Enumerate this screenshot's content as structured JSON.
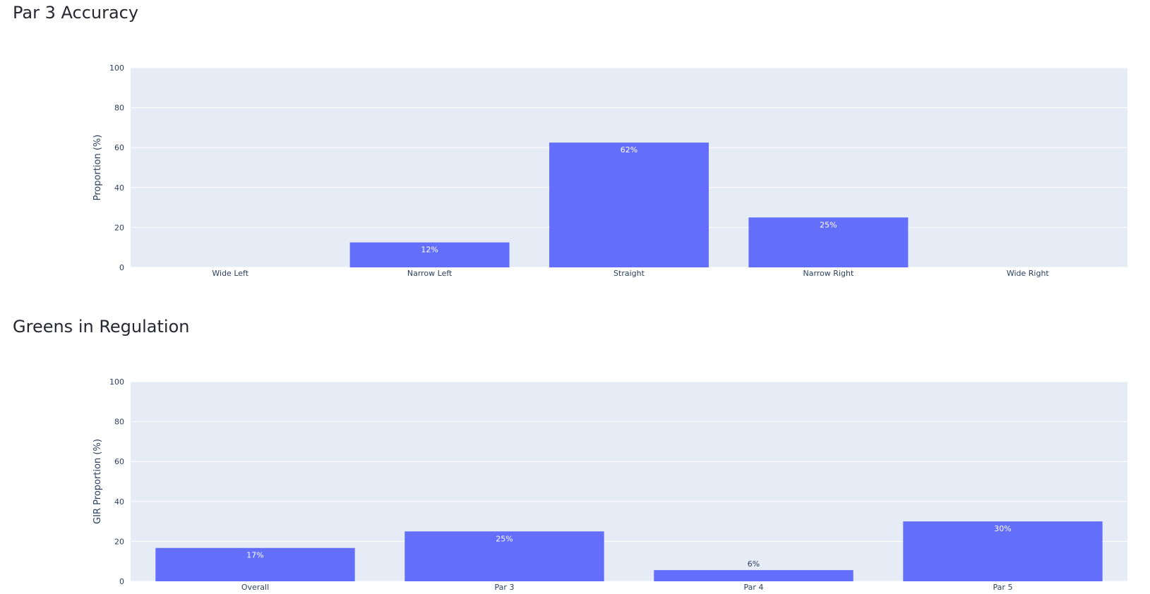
{
  "sections": [
    {
      "title": "Par 3 Accuracy"
    },
    {
      "title": "Greens in Regulation"
    }
  ],
  "chart_data": [
    {
      "type": "bar",
      "categories": [
        "Wide Left",
        "Narrow Left",
        "Straight",
        "Narrow Right",
        "Wide Right"
      ],
      "values": [
        0,
        12.5,
        62.5,
        25,
        0
      ],
      "data_labels": [
        "",
        "12%",
        "62%",
        "25%",
        ""
      ],
      "xlabel": "",
      "ylabel": "Proportion (%)",
      "ylim": [
        0,
        100
      ],
      "yticks": [
        0,
        20,
        40,
        60,
        80,
        100
      ],
      "grid": true,
      "bar_color": "#636efa",
      "plot_bg": "#e5ecf6"
    },
    {
      "type": "bar",
      "categories": [
        "Overall",
        "Par 3",
        "Par 4",
        "Par 5"
      ],
      "values": [
        16.7,
        25,
        5.6,
        30
      ],
      "data_labels": [
        "17%",
        "25%",
        "6%",
        "30%"
      ],
      "xlabel": "",
      "ylabel": "GIR Proportion (%)",
      "ylim": [
        0,
        100
      ],
      "yticks": [
        0,
        20,
        40,
        60,
        80,
        100
      ],
      "grid": true,
      "bar_color": "#636efa",
      "plot_bg": "#e5ecf6"
    }
  ]
}
